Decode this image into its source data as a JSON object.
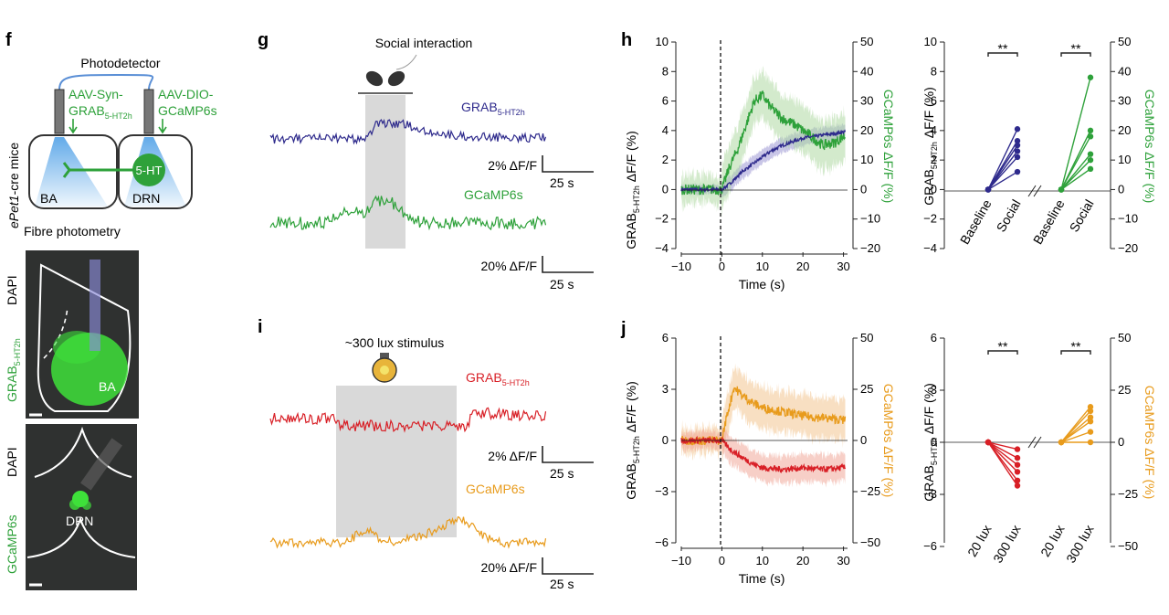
{
  "colors": {
    "grab_blue": "#2e2a8c",
    "gcamp_green": "#2ea13a",
    "grab_red": "#d81f26",
    "gcamp_orange": "#e89b1c",
    "stim_gray": "#d9d9d9",
    "bright_green": "#3ee03a"
  },
  "panel_labels": {
    "f": "f",
    "g": "g",
    "h": "h",
    "i": "i",
    "j": "j"
  },
  "panel_f": {
    "photodetector": "Photodetector",
    "aav_syn_line1": "AAV-Syn-",
    "aav_syn_line2": "GRAB",
    "aav_syn_sub": "5-HT2h",
    "aav_dio_line1": "AAV-DIO-",
    "aav_dio_line2": "GCaMP6s",
    "mouse_line_italic": "ePet1",
    "mouse_line_rest": "-cre mice",
    "region_ba": "BA",
    "region_drn": "DRN",
    "cell_label": "5-HT",
    "fibre_photometry": "Fibre photometry",
    "img1_label_dapi": "DAPI",
    "img1_label_grab": "GRAB",
    "img1_label_grab_sub": "5-HT2h",
    "img1_region": "BA",
    "img2_label_dapi": "DAPI",
    "img2_label_gcamp": "GCaMP6s",
    "img2_region": "DRN"
  },
  "panel_g": {
    "stim_label": "Social interaction",
    "trace1_label": "GRAB",
    "trace1_sub": "5-HT2h",
    "trace2_label": "GCaMP6s",
    "scale1_y": "2% ΔF/F",
    "scale1_x": "25 s",
    "scale2_y": "20% ΔF/F",
    "scale2_x": "25 s"
  },
  "panel_i": {
    "stim_label": "~300 lux stimulus",
    "trace1_label": "GRAB",
    "trace1_sub": "5-HT2h",
    "trace2_label": "GCaMP6s",
    "scale1_y": "2% ΔF/F",
    "scale1_x": "25 s",
    "scale2_y": "20% ΔF/F",
    "scale2_x": "25 s"
  },
  "panel_h_axes": {
    "ylabel_left": "GRAB",
    "ylabel_left_sub": "5-HT2h",
    "ylabel_left_rest": " ΔF/F (%)",
    "ylabel_right": "GCaMP6s ΔF/F (%)",
    "xlabel": "Time (s)",
    "xticks": [
      "−10",
      "0",
      "10",
      "20",
      "30"
    ],
    "yticks_left": [
      "10",
      "8",
      "6",
      "4",
      "2",
      "0",
      "−2",
      "−4"
    ],
    "yticks_right": [
      "50",
      "40",
      "30",
      "20",
      "10",
      "0",
      "−10",
      "−20"
    ]
  },
  "panel_h_pairs": {
    "ylabel_left": "GRAB",
    "ylabel_left_sub": "5-HT2h",
    "ylabel_left_rest": " ΔF/F (%)",
    "ylabel_right": "GCaMP6s ΔF/F (%)",
    "cat1": "Baseline",
    "cat2": "Social",
    "cat3": "Baseline",
    "cat4": "Social",
    "sig1": "**",
    "sig2": "**",
    "yticks_left": [
      "10",
      "8",
      "6",
      "4",
      "2",
      "0",
      "−2",
      "−4"
    ],
    "yticks_right": [
      "50",
      "40",
      "30",
      "20",
      "10",
      "0",
      "−10",
      "−20"
    ]
  },
  "panel_j_axes": {
    "ylabel_left": "GRAB",
    "ylabel_left_sub": "5-HT2h",
    "ylabel_left_rest": " ΔF/F (%)",
    "ylabel_right": "GCaMP6s ΔF/F (%)",
    "xlabel": "Time (s)",
    "xticks": [
      "−10",
      "0",
      "10",
      "20",
      "30"
    ],
    "yticks_left": [
      "6",
      "3",
      "0",
      "−3",
      "−6"
    ],
    "yticks_right": [
      "50",
      "25",
      "0",
      "−25",
      "−50"
    ]
  },
  "panel_j_pairs": {
    "ylabel_left": "GRAB",
    "ylabel_left_sub": "5-HT2h",
    "ylabel_left_rest": " ΔF/F (%)",
    "ylabel_right": "GCaMP6s ΔF/F (%)",
    "cat1": "20 lux",
    "cat2": "300 lux",
    "cat3": "20 lux",
    "cat4": "300 lux",
    "sig1": "**",
    "sig2": "**",
    "yticks_left": [
      "6",
      "3",
      "0",
      "−3",
      "−6"
    ],
    "yticks_right": [
      "50",
      "25",
      "0",
      "−25",
      "−50"
    ]
  },
  "chart_data": [
    {
      "type": "line",
      "panel": "h",
      "title": "",
      "xlabel": "Time (s)",
      "ylabel": "GRAB5-HT2h ΔF/F (%)",
      "ylabel_right": "GCaMP6s ΔF/F (%)",
      "xlim": [
        -10,
        31
      ],
      "ylim": [
        -4,
        10
      ],
      "ylim_right": [
        -20,
        50
      ],
      "series": [
        {
          "name": "GRAB5-HT2h",
          "axis": "left",
          "color": "#2e2a8c",
          "x": [
            -10,
            -5,
            0,
            2,
            5,
            8,
            10,
            12,
            15,
            18,
            20,
            23,
            25,
            28,
            30
          ],
          "y": [
            0,
            0,
            0,
            0.4,
            1.2,
            1.8,
            2.2,
            2.6,
            3.0,
            3.3,
            3.5,
            3.6,
            3.7,
            3.8,
            3.9
          ],
          "sem": 0.5
        },
        {
          "name": "GCaMP6s",
          "axis": "right",
          "color": "#2ea13a",
          "x": [
            -10,
            -5,
            0,
            2,
            4,
            6,
            8,
            10,
            12,
            15,
            18,
            20,
            23,
            25,
            28,
            30
          ],
          "y": [
            0,
            0,
            0,
            8,
            14,
            22,
            30,
            32,
            28,
            24,
            22,
            20,
            17,
            15,
            16,
            18
          ],
          "sem": 8
        }
      ],
      "annotations": [
        "stimulus onset at 0 s (dashed line)"
      ]
    },
    {
      "type": "scatter",
      "panel": "h",
      "subtype": "paired",
      "categories": [
        "Baseline",
        "Social",
        "Baseline",
        "Social"
      ],
      "series": [
        {
          "name": "GRAB5-HT2h",
          "axis": "left",
          "color": "#2e2a8c",
          "pairs": [
            [
              0,
              4.1
            ],
            [
              0,
              3.3
            ],
            [
              0,
              3.0
            ],
            [
              0,
              2.6
            ],
            [
              0,
              2.2
            ],
            [
              0,
              1.2
            ]
          ]
        },
        {
          "name": "GCaMP6s",
          "axis": "right",
          "color": "#2ea13a",
          "pairs": [
            [
              0,
              38
            ],
            [
              0,
              20
            ],
            [
              0,
              18
            ],
            [
              0,
              12
            ],
            [
              0,
              10
            ],
            [
              0,
              7
            ]
          ]
        }
      ],
      "ylim": [
        -4,
        10
      ],
      "ylim_right": [
        -20,
        50
      ],
      "significance": [
        "**",
        "**"
      ]
    },
    {
      "type": "line",
      "panel": "j",
      "title": "",
      "xlabel": "Time (s)",
      "ylabel": "GRAB5-HT2h ΔF/F (%)",
      "ylabel_right": "GCaMP6s ΔF/F (%)",
      "xlim": [
        -10,
        31
      ],
      "ylim": [
        -6,
        6
      ],
      "ylim_right": [
        -50,
        50
      ],
      "series": [
        {
          "name": "GRAB5-HT2h",
          "axis": "left",
          "color": "#d81f26",
          "x": [
            -10,
            -5,
            0,
            2,
            5,
            8,
            10,
            15,
            20,
            25,
            30
          ],
          "y": [
            0,
            0,
            0,
            -0.5,
            -1.0,
            -1.4,
            -1.6,
            -1.7,
            -1.6,
            -1.7,
            -1.6
          ],
          "sem": 0.8
        },
        {
          "name": "GCaMP6s",
          "axis": "right",
          "color": "#e89b1c",
          "x": [
            -10,
            -5,
            0,
            1,
            3,
            5,
            8,
            10,
            15,
            20,
            25,
            30
          ],
          "y": [
            0,
            0,
            0,
            10,
            26,
            22,
            18,
            16,
            14,
            12,
            11,
            10
          ],
          "sem": 10
        }
      ],
      "annotations": [
        "stimulus onset at 0 s (dashed line)"
      ]
    },
    {
      "type": "scatter",
      "panel": "j",
      "subtype": "paired",
      "categories": [
        "20 lux",
        "300 lux",
        "20 lux",
        "300 lux"
      ],
      "series": [
        {
          "name": "GRAB5-HT2h",
          "axis": "left",
          "color": "#d81f26",
          "pairs": [
            [
              0,
              -0.4
            ],
            [
              0,
              -0.9
            ],
            [
              0,
              -1.3
            ],
            [
              0,
              -1.7
            ],
            [
              0,
              -2.2
            ],
            [
              0,
              -2.5
            ]
          ]
        },
        {
          "name": "GCaMP6s",
          "axis": "right",
          "color": "#e89b1c",
          "pairs": [
            [
              0,
              17
            ],
            [
              0,
              15
            ],
            [
              0,
              12
            ],
            [
              0,
              10
            ],
            [
              0,
              5
            ],
            [
              0,
              0
            ]
          ]
        }
      ],
      "ylim": [
        -6,
        6
      ],
      "ylim_right": [
        -50,
        50
      ],
      "significance": [
        "**",
        "**"
      ]
    }
  ]
}
